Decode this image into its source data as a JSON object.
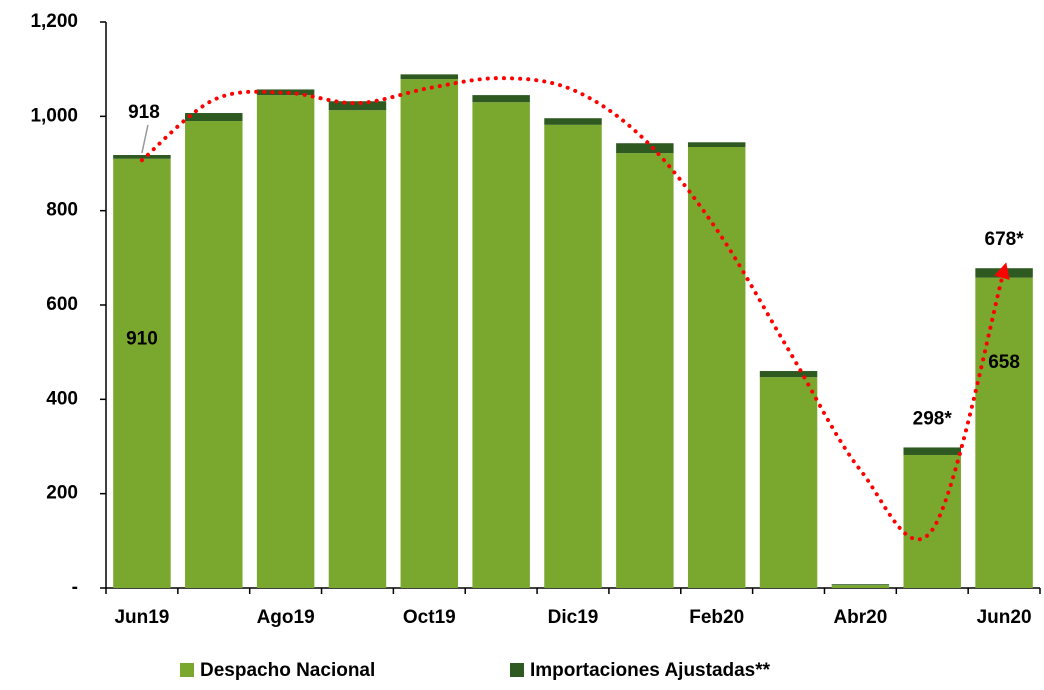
{
  "chart_data": {
    "type": "stacked_bar",
    "categories": [
      "Jun19",
      null,
      "Ago19",
      null,
      "Oct19",
      null,
      "Dic19",
      null,
      "Feb20",
      null,
      "Abr20",
      null,
      "Jun20"
    ],
    "series": [
      {
        "name": "Despacho Nacional",
        "color": "#7aa72e",
        "values": [
          910,
          990,
          1045,
          1013,
          1079,
          1030,
          982,
          922,
          935,
          447,
          6,
          282,
          658
        ],
        "value_labels": [
          "910",
          null,
          null,
          null,
          null,
          null,
          null,
          null,
          null,
          null,
          null,
          null,
          "658"
        ]
      },
      {
        "name": "Importaciones Ajustadas**",
        "color": "#2e5a22",
        "values": [
          8,
          17,
          12,
          19,
          10,
          15,
          14,
          21,
          10,
          13,
          2,
          16,
          20
        ]
      }
    ],
    "total_labels": [
      "918",
      null,
      null,
      null,
      null,
      null,
      null,
      null,
      null,
      null,
      null,
      "298*",
      "678*"
    ],
    "trend": {
      "color": "#ff0000",
      "values": [
        907,
        1035,
        1050,
        1028,
        1060,
        1081,
        1056,
        950,
        760,
        505,
        250,
        123,
        674
      ]
    },
    "ylim": [
      0,
      1200
    ],
    "yticks": [
      {
        "value": 0,
        "label": "-"
      },
      200,
      400,
      600,
      800,
      {
        "value": 1000,
        "label": "1,000"
      },
      {
        "value": 1200,
        "label": "1,200"
      }
    ],
    "legend": "bottom"
  }
}
